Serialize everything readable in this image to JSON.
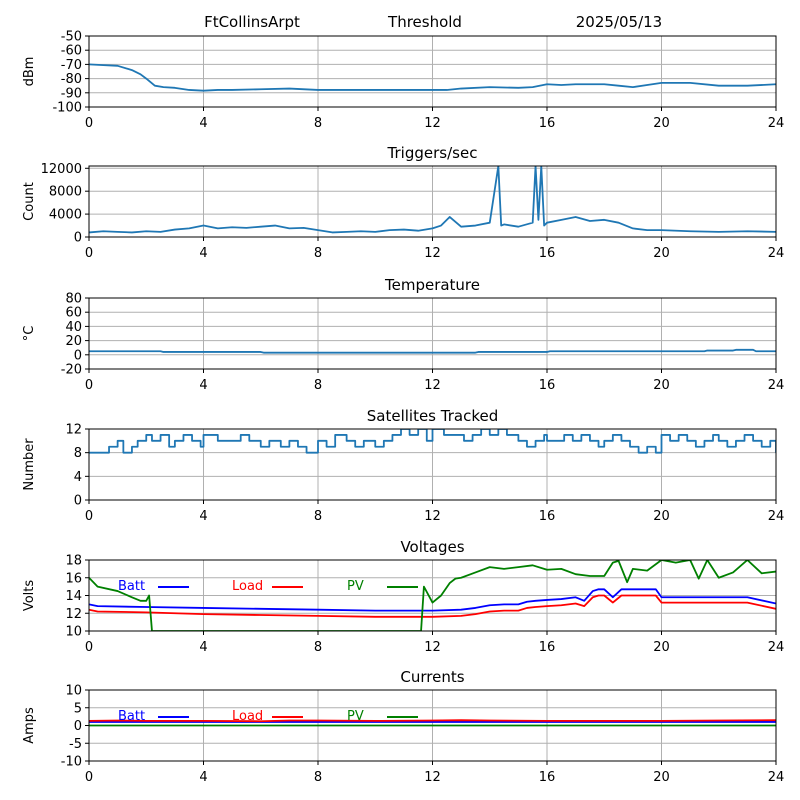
{
  "header": {
    "station": "FtCollinsArpt",
    "mode": "Threshold",
    "date": "2025/05/13"
  },
  "colors": {
    "default": "#1f77b4",
    "batt": "#0000ff",
    "load": "#ff0000",
    "pv": "#008000"
  },
  "chart_data": [
    {
      "id": "threshold",
      "type": "line",
      "title": "",
      "ylabel": "dBm",
      "xlim": [
        0,
        24
      ],
      "ylim": [
        -100,
        -50
      ],
      "xticks": [
        "0",
        "4",
        "8",
        "12",
        "16",
        "20",
        "24"
      ],
      "yticks": [
        "-50",
        "-60",
        "-70",
        "-80",
        "-90",
        "-100"
      ],
      "grid": true,
      "series": [
        {
          "color": "default",
          "x": [
            0,
            0.5,
            1,
            1.5,
            1.8,
            2,
            2.3,
            2.6,
            3,
            3.5,
            4,
            4.5,
            5,
            6,
            7,
            8,
            9,
            10,
            11,
            12,
            12.5,
            13,
            14,
            15,
            15.5,
            16,
            16.5,
            17,
            18,
            18.5,
            19,
            19.5,
            20,
            21,
            22,
            23,
            24
          ],
          "y": [
            -70,
            -70.5,
            -71,
            -74,
            -77,
            -80,
            -85,
            -86,
            -86.5,
            -88,
            -88.5,
            -88,
            -88,
            -87.5,
            -87,
            -88,
            -88,
            -88,
            -88,
            -88,
            -88,
            -87,
            -86,
            -86.5,
            -86,
            -84,
            -84.5,
            -84,
            -84,
            -85,
            -86,
            -84.5,
            -83,
            -83,
            -85,
            -85,
            -84
          ]
        }
      ]
    },
    {
      "id": "triggers",
      "type": "line",
      "title": "Triggers/sec",
      "ylabel": "Count",
      "xlim": [
        0,
        24
      ],
      "ylim": [
        0,
        12400
      ],
      "xticks": [
        "0",
        "4",
        "8",
        "12",
        "16",
        "20",
        "24"
      ],
      "yticks": [
        "0",
        "4000",
        "8000",
        "12000"
      ],
      "grid": true,
      "series": [
        {
          "color": "default",
          "x": [
            0,
            0.5,
            1,
            1.5,
            2,
            2.5,
            3,
            3.5,
            4,
            4.5,
            5,
            5.5,
            6,
            6.5,
            7,
            7.5,
            8,
            8.5,
            9,
            9.5,
            10,
            10.5,
            11,
            11.5,
            12,
            12.3,
            12.6,
            13,
            13.5,
            14,
            14.3,
            14.4,
            14.5,
            15,
            15.5,
            15.6,
            15.7,
            15.8,
            15.9,
            16,
            16.5,
            17,
            17.5,
            18,
            18.5,
            19,
            19.5,
            20,
            21,
            22,
            23,
            24
          ],
          "y": [
            800,
            1000,
            900,
            800,
            1000,
            900,
            1300,
            1500,
            2000,
            1500,
            1700,
            1600,
            1800,
            2000,
            1500,
            1600,
            1200,
            800,
            900,
            1000,
            900,
            1200,
            1300,
            1100,
            1500,
            2000,
            3500,
            1800,
            2000,
            2500,
            12400,
            2000,
            2200,
            1800,
            2500,
            12400,
            3000,
            12400,
            2000,
            2500,
            3000,
            3500,
            2800,
            3000,
            2500,
            1500,
            1200,
            1200,
            1000,
            900,
            1000,
            900
          ]
        }
      ]
    },
    {
      "id": "temperature",
      "type": "line",
      "title": "Temperature",
      "ylabel": "°C",
      "xlim": [
        0,
        24
      ],
      "ylim": [
        -20,
        80
      ],
      "xticks": [
        "0",
        "4",
        "8",
        "12",
        "16",
        "20",
        "24"
      ],
      "yticks": [
        "-20",
        "0",
        "20",
        "40",
        "60",
        "80"
      ],
      "grid": true,
      "series": [
        {
          "color": "default",
          "x": [
            0,
            2.5,
            2.6,
            6,
            6.1,
            13.5,
            13.6,
            16,
            16.1,
            21.5,
            21.6,
            22.5,
            22.6,
            23.2,
            23.3,
            24
          ],
          "y": [
            5,
            5,
            4,
            4,
            3,
            3,
            4,
            4,
            5,
            5,
            6,
            6,
            7,
            7,
            5,
            5
          ]
        }
      ]
    },
    {
      "id": "satellites",
      "type": "line",
      "title": "Satellites Tracked",
      "ylabel": "Number",
      "xlim": [
        0,
        24
      ],
      "ylim": [
        0,
        12
      ],
      "xticks": [
        "0",
        "4",
        "8",
        "12",
        "16",
        "20",
        "24"
      ],
      "yticks": [
        "0",
        "4",
        "8",
        "12"
      ],
      "grid": true,
      "series": [
        {
          "color": "default",
          "step": true,
          "x": [
            0,
            0.7,
            1,
            1.2,
            1.5,
            1.7,
            2,
            2.2,
            2.5,
            2.8,
            3,
            3.3,
            3.6,
            3.9,
            4,
            4.5,
            5,
            5.3,
            5.6,
            6,
            6.3,
            6.7,
            7,
            7.3,
            7.6,
            8,
            8.3,
            8.6,
            9,
            9.3,
            9.6,
            10,
            10.3,
            10.6,
            10.9,
            11.2,
            11.5,
            11.8,
            12,
            12.4,
            12.8,
            13.1,
            13.4,
            13.7,
            14,
            14.3,
            14.6,
            15,
            15.3,
            15.6,
            15.9,
            16,
            16.3,
            16.6,
            16.9,
            17.2,
            17.5,
            17.8,
            18,
            18.3,
            18.6,
            18.9,
            19.2,
            19.5,
            19.8,
            20,
            20.3,
            20.6,
            20.9,
            21.2,
            21.5,
            21.8,
            22,
            22.3,
            22.6,
            22.9,
            23.2,
            23.5,
            23.8,
            24
          ],
          "y": [
            8,
            9,
            10,
            8,
            9,
            10,
            11,
            10,
            11,
            9,
            10,
            11,
            10,
            9,
            11,
            10,
            10,
            11,
            10,
            9,
            10,
            9,
            10,
            9,
            8,
            10,
            9,
            11,
            10,
            9,
            10,
            9,
            10,
            11,
            12,
            11,
            12,
            10,
            12,
            11,
            11,
            10,
            11,
            12,
            11,
            12,
            11,
            10,
            9,
            10,
            11,
            10,
            10,
            11,
            10,
            11,
            10,
            9,
            10,
            11,
            10,
            9,
            8,
            9,
            8,
            11,
            10,
            11,
            10,
            9,
            10,
            11,
            10,
            9,
            10,
            11,
            10,
            9,
            10,
            8
          ]
        }
      ]
    },
    {
      "id": "voltages",
      "type": "line",
      "title": "Voltages",
      "ylabel": "Volts",
      "xlim": [
        0,
        24
      ],
      "ylim": [
        10,
        18
      ],
      "xticks": [
        "0",
        "4",
        "8",
        "12",
        "16",
        "20",
        "24"
      ],
      "yticks": [
        "10",
        "12",
        "14",
        "16",
        "18"
      ],
      "grid": true,
      "legend": [
        {
          "name": "Batt",
          "color": "batt"
        },
        {
          "name": "Load",
          "color": "load"
        },
        {
          "name": "PV",
          "color": "pv"
        }
      ],
      "series": [
        {
          "name": "Batt",
          "color": "batt",
          "x": [
            0,
            0.3,
            2,
            4,
            6,
            8,
            10,
            12,
            13,
            13.5,
            14,
            14.5,
            15,
            15.3,
            15.6,
            16,
            16.5,
            17,
            17.3,
            17.6,
            17.8,
            18,
            18.3,
            18.6,
            19,
            19.5,
            19.8,
            20,
            21,
            22,
            23,
            24
          ],
          "y": [
            13,
            12.8,
            12.7,
            12.6,
            12.5,
            12.4,
            12.3,
            12.3,
            12.4,
            12.6,
            12.9,
            13,
            13,
            13.3,
            13.4,
            13.5,
            13.6,
            13.8,
            13.4,
            14.5,
            14.7,
            14.7,
            13.8,
            14.7,
            14.7,
            14.7,
            14.7,
            13.8,
            13.8,
            13.8,
            13.8,
            13.1
          ]
        },
        {
          "name": "Load",
          "color": "load",
          "x": [
            0,
            0.3,
            2,
            4,
            6,
            8,
            10,
            12,
            13,
            13.5,
            14,
            14.5,
            15,
            15.3,
            15.6,
            16,
            16.5,
            17,
            17.3,
            17.6,
            17.8,
            18,
            18.3,
            18.6,
            19,
            19.5,
            19.8,
            20,
            21,
            22,
            23,
            24
          ],
          "y": [
            12.4,
            12.2,
            12.1,
            11.9,
            11.8,
            11.7,
            11.6,
            11.6,
            11.7,
            11.9,
            12.2,
            12.3,
            12.3,
            12.6,
            12.7,
            12.8,
            12.9,
            13.1,
            12.8,
            13.8,
            14,
            14,
            13.2,
            14,
            14,
            14,
            14,
            13.2,
            13.2,
            13.2,
            13.2,
            12.5
          ]
        },
        {
          "name": "PV",
          "color": "pv",
          "x": [
            0,
            0.3,
            1,
            1.5,
            1.8,
            2,
            2.1,
            2.2,
            11.6,
            11.7,
            12,
            12.3,
            12.6,
            12.8,
            13,
            13.5,
            14,
            14.5,
            15,
            15.5,
            16,
            16.5,
            17,
            17.5,
            18,
            18.3,
            18.5,
            18.8,
            19,
            19.5,
            20,
            20.5,
            21,
            21.3,
            21.6,
            22,
            22.5,
            23,
            23.5,
            24
          ],
          "y": [
            16,
            15,
            14.5,
            13.8,
            13.4,
            13.4,
            14,
            10,
            10,
            15,
            13.2,
            14,
            15.4,
            15.9,
            16,
            16.6,
            17.2,
            17,
            17.2,
            17.4,
            16.9,
            17,
            16.4,
            16.2,
            16.2,
            17.7,
            17.9,
            15.5,
            17,
            16.8,
            18,
            17.7,
            18,
            15.9,
            18,
            16,
            16.6,
            18,
            16.5,
            16.7
          ]
        }
      ]
    },
    {
      "id": "currents",
      "type": "line",
      "title": "Currents",
      "ylabel": "Amps",
      "xlim": [
        0,
        24
      ],
      "ylim": [
        -10,
        10
      ],
      "xticks": [
        "0",
        "4",
        "8",
        "12",
        "16",
        "20",
        "24"
      ],
      "yticks": [
        "-10",
        "-5",
        "0",
        "5",
        "10"
      ],
      "grid": true,
      "legend": [
        {
          "name": "Batt",
          "color": "batt"
        },
        {
          "name": "Load",
          "color": "load"
        },
        {
          "name": "PV",
          "color": "pv"
        }
      ],
      "series": [
        {
          "name": "Batt",
          "color": "batt",
          "x": [
            0,
            4,
            8,
            12,
            16,
            20,
            24
          ],
          "y": [
            1,
            1,
            1,
            1,
            1,
            1,
            1
          ]
        },
        {
          "name": "Load",
          "color": "load",
          "x": [
            0,
            1,
            2,
            4,
            6,
            7,
            8,
            10,
            12,
            13,
            14,
            16,
            18,
            20,
            22,
            24
          ],
          "y": [
            1.3,
            1.4,
            1.3,
            1.3,
            1.2,
            1.4,
            1.4,
            1.3,
            1.4,
            1.5,
            1.4,
            1.3,
            1.3,
            1.3,
            1.4,
            1.5
          ]
        },
        {
          "name": "PV",
          "color": "pv",
          "x": [
            0,
            4,
            8,
            12,
            16,
            20,
            24
          ],
          "y": [
            0,
            0,
            0,
            0,
            0,
            0,
            0
          ]
        }
      ]
    }
  ]
}
